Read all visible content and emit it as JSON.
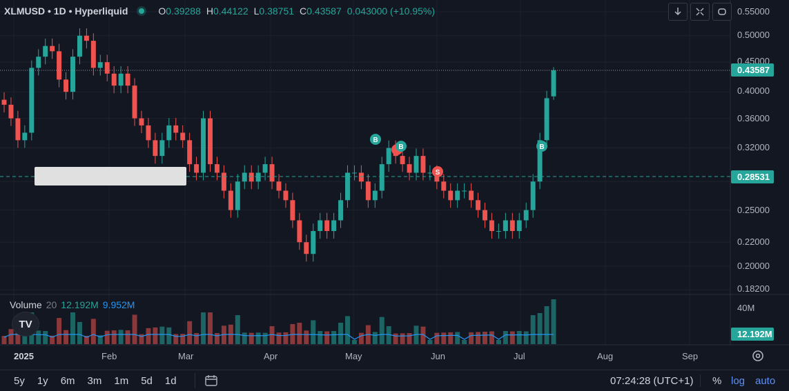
{
  "legend": {
    "symbol": "XLMUSD • 1D • Hyperliquid",
    "open_label": "O",
    "open": "0.39288",
    "high_label": "H",
    "high": "0.44122",
    "low_label": "L",
    "low": "0.38751",
    "close_label": "C",
    "close": "0.43587",
    "change": "0.043000 (+10.95%)"
  },
  "price_axis": {
    "ticks": [
      "0.55000",
      "0.50000",
      "0.45000",
      "0.40000",
      "0.36000",
      "0.32000",
      "0.28000",
      "0.25000",
      "0.22000",
      "0.20000",
      "0.18200"
    ],
    "last_price_label": "0.43587",
    "level_label": "0.28531"
  },
  "volume": {
    "title": "Volume",
    "length": "20",
    "value": "12.192M",
    "ma": "9.952M",
    "axis_tick": "40M",
    "badge": "12.192M"
  },
  "time_axis": [
    "2025",
    "Feb",
    "Mar",
    "Apr",
    "May",
    "Jun",
    "Jul",
    "Aug",
    "Sep"
  ],
  "markers": [
    "B",
    "B",
    "B",
    "S",
    "B"
  ],
  "bottom_bar": {
    "ranges": [
      "5y",
      "1y",
      "6m",
      "3m",
      "1m",
      "5d",
      "1d"
    ],
    "clock": "07:24:28 (UTC+1)",
    "percent": "%",
    "log": "log",
    "auto": "auto"
  },
  "logo": "TV",
  "icons": [
    "download-icon",
    "fullscreen-icon",
    "refresh-icon",
    "settings-gear-icon",
    "calendar-goto-icon"
  ],
  "colors": {
    "up": "#26a69a",
    "down": "#ef5350",
    "background": "#131722",
    "volume_ma": "#2196f3",
    "accent": "#2962ff"
  },
  "chart_data": {
    "type": "candlestick",
    "interval": "1D",
    "scale": "log",
    "ylim": [
      0.182,
      0.55
    ],
    "horizontal_level": 0.28531,
    "last_close": 0.43587,
    "months": [
      "2025",
      "Feb",
      "Mar",
      "Apr",
      "May",
      "Jun",
      "Jul",
      "Aug",
      "Sep"
    ],
    "approx_closes": [
      0.38,
      0.36,
      0.33,
      0.34,
      0.44,
      0.46,
      0.48,
      0.47,
      0.42,
      0.4,
      0.46,
      0.5,
      0.49,
      0.44,
      0.45,
      0.43,
      0.41,
      0.43,
      0.41,
      0.36,
      0.35,
      0.33,
      0.31,
      0.33,
      0.35,
      0.34,
      0.33,
      0.3,
      0.29,
      0.36,
      0.3,
      0.29,
      0.27,
      0.25,
      0.28,
      0.29,
      0.28,
      0.29,
      0.3,
      0.28,
      0.27,
      0.26,
      0.24,
      0.22,
      0.21,
      0.23,
      0.24,
      0.23,
      0.24,
      0.26,
      0.29,
      0.29,
      0.28,
      0.26,
      0.27,
      0.3,
      0.32,
      0.31,
      0.3,
      0.29,
      0.31,
      0.29,
      0.29,
      0.28,
      0.27,
      0.26,
      0.27,
      0.27,
      0.26,
      0.25,
      0.24,
      0.23,
      0.23,
      0.24,
      0.23,
      0.24,
      0.25,
      0.28,
      0.33,
      0.39,
      0.43587
    ]
  }
}
